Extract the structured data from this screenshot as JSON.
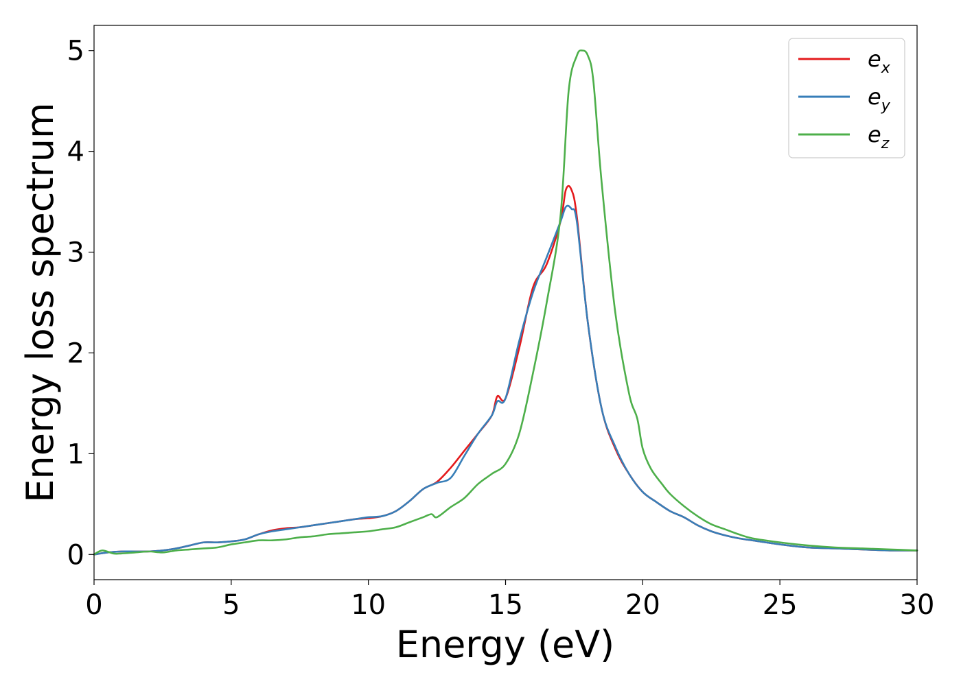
{
  "chart_data": {
    "type": "line",
    "title": "",
    "xlabel": "Energy (eV)",
    "ylabel": "Energy loss spectrum",
    "xlim": [
      0,
      30
    ],
    "ylim": [
      -0.25,
      5.25
    ],
    "xticks": [
      0,
      5,
      10,
      15,
      20,
      25,
      30
    ],
    "yticks": [
      0,
      1,
      2,
      3,
      4,
      5
    ],
    "grid": false,
    "legend_position": "top-right",
    "series": [
      {
        "name": "e_x",
        "legend_base": "e",
        "legend_sub": "x",
        "color": "#e41a1c",
        "x": [
          0,
          0.5,
          1,
          1.5,
          2,
          2.5,
          3,
          3.5,
          4,
          4.5,
          5,
          5.5,
          6,
          6.5,
          7,
          7.5,
          8,
          8.5,
          9,
          9.5,
          10,
          10.5,
          11,
          11.5,
          12,
          12.5,
          13,
          13.5,
          14,
          14.5,
          14.7,
          15,
          15.5,
          16,
          16.5,
          17,
          17.2,
          17.4,
          17.6,
          18,
          18.5,
          19,
          19.5,
          20,
          20.5,
          21,
          21.5,
          22,
          22.5,
          23,
          23.5,
          24,
          25,
          26,
          27,
          28,
          29,
          30
        ],
        "y": [
          0.0,
          0.02,
          0.03,
          0.03,
          0.03,
          0.04,
          0.06,
          0.09,
          0.12,
          0.12,
          0.13,
          0.15,
          0.2,
          0.24,
          0.26,
          0.27,
          0.29,
          0.31,
          0.33,
          0.35,
          0.36,
          0.38,
          0.43,
          0.53,
          0.65,
          0.72,
          0.86,
          1.03,
          1.2,
          1.38,
          1.57,
          1.55,
          2.05,
          2.65,
          2.88,
          3.3,
          3.62,
          3.62,
          3.35,
          2.3,
          1.45,
          1.05,
          0.8,
          0.62,
          0.52,
          0.43,
          0.37,
          0.29,
          0.23,
          0.19,
          0.16,
          0.14,
          0.1,
          0.07,
          0.06,
          0.05,
          0.04,
          0.04
        ]
      },
      {
        "name": "e_y",
        "legend_base": "e",
        "legend_sub": "y",
        "color": "#377eb8",
        "x": [
          0,
          0.5,
          1,
          1.5,
          2,
          2.5,
          3,
          3.5,
          4,
          4.5,
          5,
          5.5,
          6,
          6.5,
          7,
          7.5,
          8,
          8.5,
          9,
          9.5,
          10,
          10.5,
          11,
          11.5,
          12,
          12.5,
          13,
          13.5,
          14,
          14.5,
          14.7,
          15,
          15.5,
          16,
          16.5,
          17,
          17.2,
          17.4,
          17.6,
          18,
          18.5,
          19,
          19.5,
          20,
          20.5,
          21,
          21.5,
          22,
          22.5,
          23,
          23.5,
          24,
          25,
          26,
          27,
          28,
          29,
          30
        ],
        "y": [
          0.0,
          0.02,
          0.03,
          0.03,
          0.03,
          0.04,
          0.06,
          0.09,
          0.12,
          0.12,
          0.13,
          0.15,
          0.2,
          0.23,
          0.25,
          0.27,
          0.29,
          0.31,
          0.33,
          0.35,
          0.37,
          0.38,
          0.43,
          0.53,
          0.65,
          0.71,
          0.76,
          0.98,
          1.2,
          1.38,
          1.52,
          1.55,
          2.12,
          2.6,
          2.95,
          3.3,
          3.45,
          3.43,
          3.3,
          2.3,
          1.45,
          1.07,
          0.8,
          0.62,
          0.52,
          0.43,
          0.37,
          0.29,
          0.23,
          0.19,
          0.16,
          0.14,
          0.1,
          0.07,
          0.06,
          0.05,
          0.04,
          0.04
        ]
      },
      {
        "name": "e_z",
        "legend_base": "e",
        "legend_sub": "z",
        "color": "#4daf4a",
        "x": [
          0,
          0.3,
          0.7,
          1,
          1.5,
          2,
          2.5,
          3,
          3.5,
          4,
          4.5,
          5,
          5.5,
          6,
          6.5,
          7,
          7.5,
          8,
          8.5,
          9,
          9.5,
          10,
          10.5,
          11,
          11.5,
          12,
          12.3,
          12.5,
          13,
          13.5,
          14,
          14.5,
          15,
          15.5,
          16,
          16.5,
          17,
          17.3,
          17.6,
          17.8,
          18,
          18.2,
          18.5,
          19,
          19.5,
          19.8,
          20,
          20.3,
          20.7,
          21,
          21.5,
          22,
          22.5,
          23,
          23.5,
          24,
          25,
          26,
          27,
          28,
          29,
          30
        ],
        "y": [
          0.0,
          0.04,
          0.01,
          0.01,
          0.02,
          0.03,
          0.02,
          0.04,
          0.05,
          0.06,
          0.07,
          0.1,
          0.12,
          0.14,
          0.14,
          0.15,
          0.17,
          0.18,
          0.2,
          0.21,
          0.22,
          0.23,
          0.25,
          0.27,
          0.32,
          0.37,
          0.4,
          0.37,
          0.47,
          0.56,
          0.7,
          0.8,
          0.9,
          1.2,
          1.8,
          2.5,
          3.35,
          4.6,
          4.95,
          5.0,
          4.95,
          4.7,
          3.7,
          2.4,
          1.6,
          1.35,
          1.05,
          0.85,
          0.7,
          0.6,
          0.48,
          0.38,
          0.3,
          0.25,
          0.2,
          0.16,
          0.12,
          0.09,
          0.07,
          0.06,
          0.05,
          0.04
        ]
      }
    ]
  }
}
